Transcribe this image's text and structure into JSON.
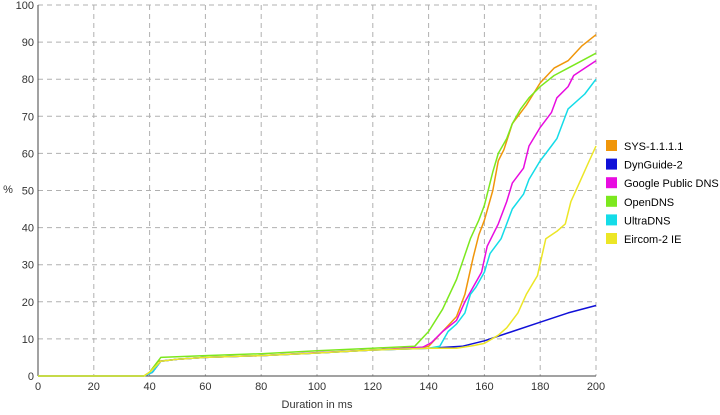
{
  "chart_data": {
    "type": "line",
    "xlabel": "Duration in ms",
    "ylabel": "%",
    "xlim": [
      0,
      200
    ],
    "ylim": [
      0,
      100
    ],
    "x_ticks": [
      0,
      20,
      40,
      60,
      80,
      100,
      120,
      140,
      160,
      180,
      200
    ],
    "y_ticks": [
      0,
      10,
      20,
      30,
      40,
      50,
      60,
      70,
      80,
      90,
      100
    ],
    "grid": true,
    "legend_position": "right",
    "series": [
      {
        "name": "SYS-1.1.1.1",
        "color": "#f0960a",
        "points": [
          [
            0,
            0
          ],
          [
            38,
            0
          ],
          [
            40,
            1
          ],
          [
            43,
            4
          ],
          [
            50,
            4.5
          ],
          [
            60,
            5
          ],
          [
            80,
            5.5
          ],
          [
            100,
            6.2
          ],
          [
            120,
            7
          ],
          [
            135,
            7.5
          ],
          [
            140,
            8
          ],
          [
            145,
            12
          ],
          [
            150,
            16
          ],
          [
            153,
            22
          ],
          [
            156,
            32
          ],
          [
            158,
            38
          ],
          [
            160,
            42
          ],
          [
            163,
            50
          ],
          [
            165,
            58
          ],
          [
            167,
            61
          ],
          [
            170,
            68
          ],
          [
            175,
            73
          ],
          [
            180,
            79
          ],
          [
            185,
            83
          ],
          [
            190,
            85
          ],
          [
            195,
            89
          ],
          [
            200,
            92
          ]
        ]
      },
      {
        "name": "DynGuide-2",
        "color": "#1010d8",
        "points": [
          [
            0,
            0
          ],
          [
            38,
            0
          ],
          [
            41,
            1
          ],
          [
            44,
            4
          ],
          [
            50,
            4.5
          ],
          [
            60,
            5
          ],
          [
            80,
            5.5
          ],
          [
            100,
            6.2
          ],
          [
            120,
            7
          ],
          [
            140,
            7.5
          ],
          [
            152,
            8
          ],
          [
            160,
            9.5
          ],
          [
            170,
            12
          ],
          [
            180,
            14.5
          ],
          [
            190,
            17
          ],
          [
            200,
            19
          ]
        ]
      },
      {
        "name": "Google Public DNS",
        "color": "#e80ce0",
        "points": [
          [
            0,
            0
          ],
          [
            38,
            0
          ],
          [
            41,
            1
          ],
          [
            44,
            4
          ],
          [
            50,
            4.5
          ],
          [
            60,
            5
          ],
          [
            80,
            5.5
          ],
          [
            100,
            6.3
          ],
          [
            120,
            7
          ],
          [
            138,
            7.8
          ],
          [
            141,
            9
          ],
          [
            145,
            12
          ],
          [
            150,
            15
          ],
          [
            153,
            20
          ],
          [
            156,
            24
          ],
          [
            159,
            28
          ],
          [
            161,
            35
          ],
          [
            165,
            41
          ],
          [
            168,
            47
          ],
          [
            170,
            52
          ],
          [
            174,
            56
          ],
          [
            176,
            62
          ],
          [
            180,
            67
          ],
          [
            184,
            71
          ],
          [
            186,
            75
          ],
          [
            190,
            78
          ],
          [
            192,
            81
          ],
          [
            196,
            83
          ],
          [
            200,
            85
          ]
        ]
      },
      {
        "name": "OpenDNS",
        "color": "#7ce81e",
        "points": [
          [
            0,
            0
          ],
          [
            38,
            0
          ],
          [
            40,
            1
          ],
          [
            44,
            5
          ],
          [
            60,
            5.5
          ],
          [
            80,
            6
          ],
          [
            100,
            6.8
          ],
          [
            120,
            7.5
          ],
          [
            135,
            8
          ],
          [
            140,
            12
          ],
          [
            145,
            18
          ],
          [
            150,
            26
          ],
          [
            155,
            37
          ],
          [
            158,
            42
          ],
          [
            160,
            46
          ],
          [
            163,
            55
          ],
          [
            165,
            60
          ],
          [
            168,
            64
          ],
          [
            170,
            68
          ],
          [
            173,
            72
          ],
          [
            176,
            75
          ],
          [
            180,
            78
          ],
          [
            185,
            81
          ],
          [
            190,
            83
          ],
          [
            195,
            85
          ],
          [
            200,
            87
          ]
        ]
      },
      {
        "name": "UltraDNS",
        "color": "#14dce8",
        "points": [
          [
            0,
            0
          ],
          [
            38,
            0
          ],
          [
            41,
            1
          ],
          [
            44,
            4
          ],
          [
            50,
            4.5
          ],
          [
            60,
            5
          ],
          [
            80,
            5.5
          ],
          [
            100,
            6.2
          ],
          [
            120,
            7
          ],
          [
            140,
            7.5
          ],
          [
            144,
            8
          ],
          [
            147,
            12
          ],
          [
            150,
            14
          ],
          [
            153,
            17
          ],
          [
            155,
            22
          ],
          [
            157,
            24
          ],
          [
            160,
            28
          ],
          [
            162,
            33
          ],
          [
            166,
            37
          ],
          [
            168,
            41
          ],
          [
            170,
            45
          ],
          [
            174,
            49
          ],
          [
            176,
            53
          ],
          [
            180,
            58
          ],
          [
            184,
            62
          ],
          [
            186,
            64
          ],
          [
            190,
            72
          ],
          [
            196,
            76
          ],
          [
            200,
            80
          ]
        ]
      },
      {
        "name": "Eircom-2 IE",
        "color": "#ece626",
        "points": [
          [
            0,
            0
          ],
          [
            38,
            0
          ],
          [
            40,
            1
          ],
          [
            44,
            4
          ],
          [
            50,
            4.5
          ],
          [
            60,
            5
          ],
          [
            80,
            5.5
          ],
          [
            100,
            6.2
          ],
          [
            120,
            7
          ],
          [
            140,
            7.5
          ],
          [
            150,
            7.5
          ],
          [
            156,
            8.2
          ],
          [
            160,
            8.8
          ],
          [
            165,
            11
          ],
          [
            168,
            13
          ],
          [
            172,
            17
          ],
          [
            175,
            22
          ],
          [
            179,
            27
          ],
          [
            182,
            37
          ],
          [
            186,
            39
          ],
          [
            189,
            41
          ],
          [
            191,
            47
          ],
          [
            194,
            52
          ],
          [
            197,
            57
          ],
          [
            200,
            62
          ]
        ]
      }
    ]
  }
}
